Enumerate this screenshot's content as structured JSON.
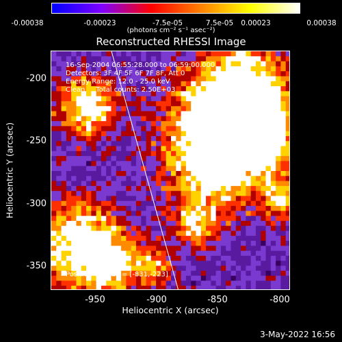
{
  "colorbar": {
    "tick_labels": [
      "-0.00038",
      "-0.00023",
      "-7.5e-05",
      "7.5e-05",
      "0.00023",
      "0.00038"
    ],
    "unit_label": "(photons cm⁻² s⁻¹ asec⁻²)",
    "colors": [
      "#0000ff",
      "#7f00ff",
      "#ff0000",
      "#ff8000",
      "#ffff00",
      "#ffffff"
    ]
  },
  "image": {
    "title": "Reconstructed RHESSI Image",
    "info_lines": [
      "16-Sep-2004 06:55:28.000 to 06:59:00.000",
      "Detectors: 3F 4F 5F 6F 7F 8F, Att 0",
      "Energy Range: 12.0 - 25.0 keV",
      "Clean     Total counts: 2.50E+03"
    ],
    "peak_label": "Position of Peak = [-831,-223]",
    "x_axis": {
      "label": "Heliocentric X (arcsec)",
      "ticks": [
        "-950",
        "-900",
        "-850",
        "-800"
      ],
      "range": [
        -975,
        -788
      ]
    },
    "y_axis": {
      "label": "Heliocentric Y (arcsec)",
      "ticks": [
        "-200",
        "-250",
        "-300",
        "-350"
      ],
      "range": [
        -370,
        -182
      ]
    },
    "colormap": [
      "#3a0060",
      "#5a1aa0",
      "#7a3ad0",
      "#b00000",
      "#ff3000",
      "#ff8a00",
      "#ffd200",
      "#ffffff"
    ],
    "limb_color": "#ffffff"
  },
  "footer": {
    "date": "3-May-2022 16:56"
  }
}
